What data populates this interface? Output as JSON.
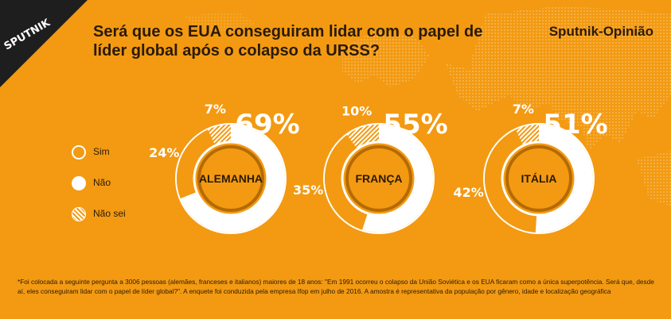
{
  "header": {
    "brand_logo": "SPUTNIK",
    "title": "Será que os EUA conseguiram lidar com o papel de líder global após o colapso da URSS?",
    "source_label": "Sputnik-Opinião"
  },
  "legend": {
    "items": [
      {
        "label": "Sim",
        "icon": "ring-swatch"
      },
      {
        "label": "Não",
        "icon": "white-dot-swatch"
      },
      {
        "label": "Não sei",
        "icon": "hatched-swatch"
      }
    ]
  },
  "colors": {
    "background": "#f39a12",
    "no_fill": "#ffffff",
    "text_dark": "#2a1a08"
  },
  "chart_data": [
    {
      "type": "pie",
      "title": "ALEMANHA",
      "categories": [
        "Não",
        "Sim",
        "Não sei"
      ],
      "values": [
        69,
        24,
        7
      ],
      "labels": [
        "69%",
        "24%",
        "7%"
      ]
    },
    {
      "type": "pie",
      "title": "FRANÇA",
      "categories": [
        "Não",
        "Sim",
        "Não sei"
      ],
      "values": [
        55,
        35,
        10
      ],
      "labels": [
        "55%",
        "35%",
        "10%"
      ]
    },
    {
      "type": "pie",
      "title": "ITÁLIA",
      "categories": [
        "Não",
        "Sim",
        "Não sei"
      ],
      "values": [
        51,
        42,
        7
      ],
      "labels": [
        "51%",
        "42%",
        "7%"
      ]
    }
  ],
  "footnote": "*Foi colocada a seguinte pergunta a 3006 pessoas (alemães, franceses e italianos) maiores de 18 anos: \"Em 1991 ocorreu o colapso da União Soviética e os EUA ficaram como a única superpotência. Será que, desde aí, eles conseguiram lidar com o papel de líder global?\". A enquete foi conduzida pela empresa Ifop em julho de 2016. A amostra é representativa da população por gênero, idade e localização geográfica"
}
